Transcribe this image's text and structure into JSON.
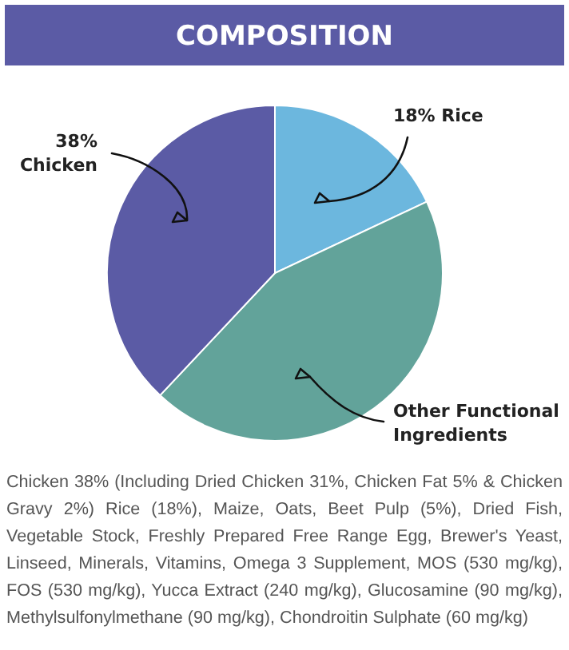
{
  "chart_data": {
    "type": "pie",
    "title": "COMPOSITION",
    "categories": [
      "Rice",
      "Other Functional Ingredients",
      "Chicken"
    ],
    "values": [
      18,
      44,
      38
    ],
    "value_labels": [
      "18%",
      null,
      "38%"
    ],
    "colors": [
      "#6cb7de",
      "#62a39a",
      "#5b5ba5"
    ],
    "annotations": [
      "Chicken 38% (Including Dried Chicken 31%, Chicken Fat 5% & Chicken Gravy 2%) Rice (18%), Maize, Oats, Beet Pulp (5%), Dried Fish, Vegetable Stock, Freshly Prepared Free Range Egg, Brewer's Yeast, Linseed, Minerals, Vitamins, Omega 3 Supplement, MOS (530 mg/kg), FOS (530 mg/kg), Yucca Extract (240 mg/kg), Glucosamine (90 mg/kg), Methylsulfonylmethane (90 mg/kg), Chondroitin Sulphate (60 mg/kg)"
    ]
  }
}
